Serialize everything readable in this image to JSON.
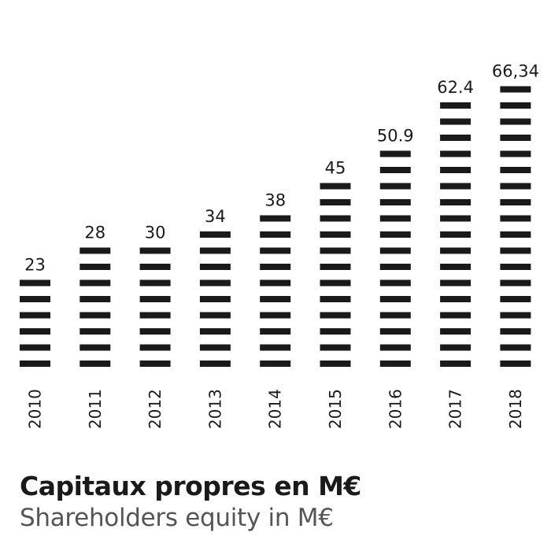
{
  "chart_data": {
    "type": "bar",
    "title": "Capitaux propres en M€",
    "subtitle": "Shareholders equity in M€",
    "categories": [
      "2010",
      "2011",
      "2012",
      "2013",
      "2014",
      "2015",
      "2016",
      "2017",
      "2018"
    ],
    "values": [
      23,
      28,
      30,
      34,
      38,
      45,
      50.9,
      62.4,
      66.34
    ],
    "value_labels": [
      "23",
      "28",
      "30",
      "34",
      "38",
      "45",
      "50.9",
      "62.4",
      "66,34"
    ],
    "ylim": [
      0,
      66.34
    ],
    "grid": false,
    "bar_color": "#1a1a1a"
  }
}
